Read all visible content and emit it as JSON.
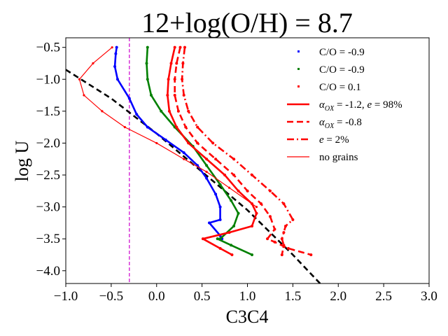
{
  "chart_data": {
    "type": "line",
    "title": "12+log(O/H) = 8.7",
    "xlabel": "C3C4",
    "ylabel": "log U",
    "xlim": [
      -1.0,
      3.0
    ],
    "ylim": [
      -4.2,
      -0.35
    ],
    "xticks": [
      -1.0,
      -0.5,
      0.0,
      0.5,
      1.0,
      1.5,
      2.0,
      2.5,
      3.0
    ],
    "xtick_labels": [
      "−1.0",
      "−0.5",
      "0.0",
      "0.5",
      "1.0",
      "1.5",
      "2.0",
      "2.5",
      "3.0"
    ],
    "yticks": [
      -0.5,
      -1.0,
      -1.5,
      -2.0,
      -2.5,
      -3.0,
      -3.5,
      -4.0
    ],
    "ytick_labels": [
      "−0.5",
      "−1.0",
      "−1.5",
      "−2.0",
      "−2.5",
      "−3.0",
      "−3.5",
      "−4.0"
    ],
    "legend": {
      "placement": "upper-right",
      "entries": [
        {
          "label": "C/O = -0.9",
          "kind": "marker",
          "color": "#0000ff"
        },
        {
          "label": "C/O = -0.9",
          "kind": "marker",
          "color": "#008000"
        },
        {
          "label": "C/O = 0.1",
          "kind": "marker",
          "color": "#ff0000"
        },
        {
          "label": "αOX = -1.2, e = 98%",
          "label_main": "α",
          "label_sub": "OX",
          "label_rest": " = -1.2, ",
          "label_italic": "e",
          "label_tail": " = 98%",
          "kind": "line",
          "dash": "solid",
          "color": "#ff0000"
        },
        {
          "label": "αOX = -0.8",
          "label_main": "α",
          "label_sub": "OX",
          "label_rest": " = -0.8",
          "kind": "line",
          "dash": "dashed",
          "color": "#ff0000"
        },
        {
          "label": "e = 2%",
          "label_italic": "e",
          "label_tail": " = 2%",
          "kind": "line",
          "dash": "dashdot",
          "color": "#ff0000"
        },
        {
          "label": "no grains",
          "kind": "line",
          "dash": "thin",
          "color": "#ff0000"
        }
      ]
    },
    "reference_lines": [
      {
        "name": "vertical-cut",
        "orientation": "vertical",
        "x": -0.3,
        "color": "#cc00cc",
        "style": "dashed"
      },
      {
        "name": "diagonal-fit",
        "x": [
          -1.0,
          -0.5,
          0.0,
          0.5,
          1.0,
          1.5,
          1.8
        ],
        "y": [
          -0.85,
          -1.3,
          -1.85,
          -2.45,
          -3.05,
          -3.75,
          -4.2
        ],
        "color": "#000000",
        "style": "dashed"
      }
    ],
    "series": [
      {
        "name": "C/O = -0.9 (blue)",
        "color": "#0000ff",
        "dash": "solid",
        "width": "thick",
        "markers": true,
        "x": [
          -0.44,
          -0.45,
          -0.46,
          -0.43,
          -0.3,
          -0.22,
          -0.1,
          0.1,
          0.3,
          0.45,
          0.55,
          0.65,
          0.7,
          0.7,
          0.58,
          0.7,
          0.72
        ],
        "y": [
          -0.5,
          -0.6,
          -0.8,
          -1.0,
          -1.3,
          -1.55,
          -1.75,
          -1.95,
          -2.15,
          -2.35,
          -2.55,
          -2.8,
          -3.0,
          -3.2,
          -3.25,
          -3.45,
          -3.5
        ]
      },
      {
        "name": "C/O = -0.9 (green)",
        "color": "#008000",
        "dash": "solid",
        "width": "thick",
        "markers": true,
        "x": [
          -0.1,
          -0.11,
          -0.1,
          -0.06,
          0.05,
          0.2,
          0.4,
          0.55,
          0.7,
          0.82,
          0.9,
          0.85,
          0.7,
          0.67,
          0.82,
          1.05
        ],
        "y": [
          -0.5,
          -0.75,
          -1.0,
          -1.25,
          -1.5,
          -1.75,
          -2.05,
          -2.35,
          -2.65,
          -2.9,
          -3.1,
          -3.3,
          -3.5,
          -3.5,
          -3.6,
          -3.75
        ]
      },
      {
        "name": "C/O = 0.1, αOX = -1.2, e = 98%",
        "color": "#ff0000",
        "dash": "solid",
        "width": "thick",
        "markers": true,
        "x": [
          0.2,
          0.16,
          0.13,
          0.12,
          0.14,
          0.22,
          0.35,
          0.55,
          0.75,
          0.9,
          1.05,
          1.1,
          1.05,
          0.8,
          0.51,
          0.7,
          0.83
        ],
        "y": [
          -0.5,
          -0.75,
          -1.0,
          -1.25,
          -1.5,
          -1.75,
          -2.0,
          -2.25,
          -2.5,
          -2.75,
          -2.95,
          -3.1,
          -3.3,
          -3.4,
          -3.5,
          -3.65,
          -3.75
        ]
      },
      {
        "name": "C/O = 0.1, αOX = -0.8",
        "color": "#ff0000",
        "dash": "dashed",
        "width": "thick",
        "markers": true,
        "x": [
          0.26,
          0.22,
          0.2,
          0.2,
          0.24,
          0.32,
          0.45,
          0.65,
          0.85,
          1.0,
          1.15,
          1.25,
          1.3,
          1.22,
          1.3,
          1.45,
          1.7
        ],
        "y": [
          -0.5,
          -0.75,
          -1.0,
          -1.25,
          -1.5,
          -1.75,
          -2.0,
          -2.25,
          -2.5,
          -2.75,
          -2.95,
          -3.15,
          -3.35,
          -3.5,
          -3.55,
          -3.65,
          -3.75
        ]
      },
      {
        "name": "C/O = 0.1, e = 2%",
        "color": "#ff0000",
        "dash": "dashdot",
        "width": "thick",
        "markers": true,
        "x": [
          0.31,
          0.29,
          0.28,
          0.3,
          0.35,
          0.45,
          0.62,
          0.85,
          1.05,
          1.25,
          1.4,
          1.5,
          1.42,
          1.4,
          1.38,
          1.4,
          1.38
        ],
        "y": [
          -0.5,
          -0.75,
          -1.0,
          -1.25,
          -1.5,
          -1.75,
          -2.0,
          -2.25,
          -2.5,
          -2.75,
          -2.95,
          -3.2,
          -3.3,
          -3.4,
          -3.5,
          -3.6,
          -3.75
        ]
      },
      {
        "name": "C/O = 0.1, no grains",
        "color": "#ff0000",
        "dash": "thin",
        "width": "thin",
        "markers": true,
        "x": [
          -0.49,
          -0.7,
          -0.85,
          -0.8,
          -0.6,
          -0.35,
          0.0,
          0.3,
          0.55,
          0.8,
          1.1
        ],
        "y": [
          -0.5,
          -0.75,
          -1.0,
          -1.25,
          -1.5,
          -1.75,
          -2.0,
          -2.25,
          -2.45,
          -2.7,
          -3.0
        ]
      }
    ]
  }
}
